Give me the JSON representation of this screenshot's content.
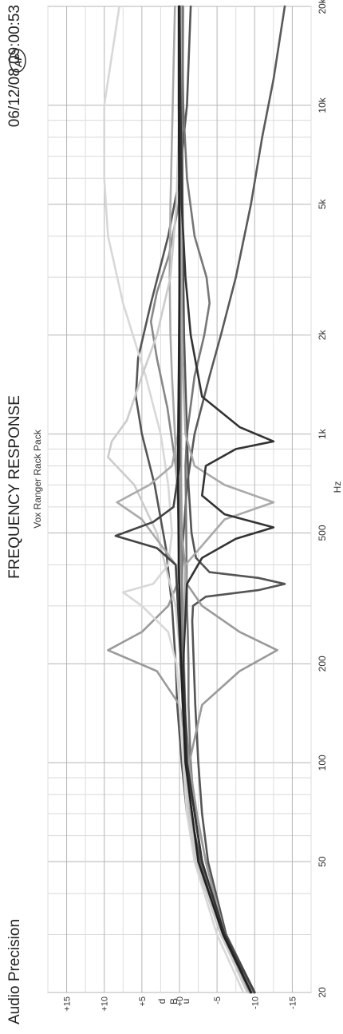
{
  "header": {
    "brand": "Audio Precision",
    "timestamp": "06/12/08 09:00:53",
    "logo_text": "AP"
  },
  "chart_data": {
    "type": "line",
    "orientation": "rotated-90",
    "title": "FREQUENCY RESPONSE",
    "subtitle": "Vox Ranger Rack Pack",
    "xlabel": "Hz",
    "ylabel": "dBu",
    "x_scale": "log",
    "xlim": [
      20,
      20000
    ],
    "ylim": [
      -17.5,
      17.5
    ],
    "x_ticks": [
      {
        "value": 20,
        "label": "20"
      },
      {
        "value": 50,
        "label": "50"
      },
      {
        "value": 100,
        "label": "100"
      },
      {
        "value": 200,
        "label": "200"
      },
      {
        "value": 500,
        "label": "500"
      },
      {
        "value": 1000,
        "label": "1k"
      },
      {
        "value": 2000,
        "label": "2k"
      },
      {
        "value": 5000,
        "label": "5k"
      },
      {
        "value": 10000,
        "label": "10k"
      },
      {
        "value": 20000,
        "label": "20k"
      }
    ],
    "y_ticks": [
      {
        "value": 15,
        "label": "+15"
      },
      {
        "value": 10,
        "label": "+10"
      },
      {
        "value": 5,
        "label": "+5"
      },
      {
        "value": 0,
        "label": "+0"
      },
      {
        "value": -5,
        "label": "-5"
      },
      {
        "value": -10,
        "label": "-10"
      },
      {
        "value": -15,
        "label": "-15"
      }
    ],
    "grid": true,
    "series": [
      {
        "color": "#5a5a5a",
        "points": [
          [
            20,
            -10
          ],
          [
            30,
            -6
          ],
          [
            50,
            -2.8
          ],
          [
            70,
            -1.5
          ],
          [
            100,
            -0.8
          ],
          [
            150,
            -0.4
          ],
          [
            200,
            -0.3
          ],
          [
            300,
            -0.3
          ],
          [
            450,
            -0.4
          ],
          [
            700,
            -1
          ],
          [
            1000,
            -2
          ],
          [
            1500,
            -4
          ],
          [
            2000,
            -5.5
          ],
          [
            3000,
            -7.5
          ],
          [
            5000,
            -9.5
          ],
          [
            8000,
            -11
          ],
          [
            12000,
            -12.5
          ],
          [
            20000,
            -14
          ]
        ]
      },
      {
        "color": "#555555",
        "points": [
          [
            20,
            -9.5
          ],
          [
            30,
            -5.5
          ],
          [
            50,
            -2.2
          ],
          [
            70,
            -1
          ],
          [
            100,
            -0.3
          ],
          [
            150,
            0.3
          ],
          [
            200,
            0.5
          ],
          [
            300,
            1
          ],
          [
            450,
            1.8
          ],
          [
            700,
            3.3
          ],
          [
            1000,
            5
          ],
          [
            1300,
            5.8
          ],
          [
            1700,
            5.5
          ],
          [
            2500,
            3.8
          ],
          [
            4000,
            1.5
          ],
          [
            6000,
            0
          ],
          [
            10000,
            -1
          ],
          [
            20000,
            -1.5
          ]
        ]
      },
      {
        "color": "#888888",
        "points": [
          [
            20,
            -9.5
          ],
          [
            30,
            -5.8
          ],
          [
            50,
            -3
          ],
          [
            70,
            -2
          ],
          [
            100,
            -1.3
          ],
          [
            140,
            -0.8
          ],
          [
            200,
            -0.6
          ],
          [
            300,
            -0.4
          ],
          [
            500,
            -0.2
          ],
          [
            800,
            0.5
          ],
          [
            1200,
            1.6
          ],
          [
            1700,
            3
          ],
          [
            2200,
            3.8
          ],
          [
            2700,
            3
          ],
          [
            3500,
            1.4
          ],
          [
            5000,
            0.1
          ],
          [
            10000,
            -0.4
          ],
          [
            20000,
            -0.5
          ]
        ]
      },
      {
        "color": "#777777",
        "points": [
          [
            20,
            -9.8
          ],
          [
            30,
            -6
          ],
          [
            50,
            -3
          ],
          [
            70,
            -2
          ],
          [
            100,
            -1.5
          ],
          [
            150,
            -1.2
          ],
          [
            200,
            -1.2
          ],
          [
            250,
            -1.1
          ],
          [
            300,
            -1
          ],
          [
            500,
            -0.9
          ],
          [
            800,
            -0.8
          ],
          [
            1000,
            -1
          ],
          [
            1500,
            -2
          ],
          [
            2000,
            -3.3
          ],
          [
            2500,
            -4
          ],
          [
            3000,
            -3.6
          ],
          [
            4000,
            -2
          ],
          [
            6000,
            -1
          ],
          [
            10000,
            -0.5
          ],
          [
            20000,
            -0.3
          ]
        ]
      },
      {
        "color": "#aaaaaa",
        "points": [
          [
            20,
            -9.3
          ],
          [
            30,
            -5.5
          ],
          [
            50,
            -2.5
          ],
          [
            70,
            -1.5
          ],
          [
            100,
            -0.8
          ],
          [
            150,
            -0.4
          ],
          [
            200,
            -0.2
          ],
          [
            300,
            -0.1
          ],
          [
            450,
            0
          ],
          [
            700,
            0.3
          ],
          [
            1000,
            0.6
          ],
          [
            1500,
            1
          ],
          [
            2000,
            1.2
          ],
          [
            3000,
            1.3
          ],
          [
            5000,
            1.2
          ],
          [
            10000,
            0.9
          ],
          [
            20000,
            0.6
          ]
        ]
      },
      {
        "color": "#555555",
        "points": [
          [
            20,
            -10
          ],
          [
            30,
            -6.2
          ],
          [
            50,
            -3.8
          ],
          [
            70,
            -3
          ],
          [
            100,
            -2.5
          ],
          [
            150,
            -2.1
          ],
          [
            200,
            -1.9
          ],
          [
            270,
            -1.7
          ],
          [
            300,
            -1.8
          ],
          [
            320,
            -3.5
          ],
          [
            335,
            -10.5
          ],
          [
            350,
            -14
          ],
          [
            365,
            -10.5
          ],
          [
            380,
            -4
          ],
          [
            420,
            -2.2
          ],
          [
            500,
            -1.6
          ],
          [
            700,
            -1.2
          ],
          [
            1000,
            -1
          ],
          [
            2000,
            -0.6
          ],
          [
            5000,
            -0.4
          ],
          [
            20000,
            -0.3
          ]
        ]
      },
      {
        "color": "#9a9a9a",
        "points": [
          [
            20,
            -9.5
          ],
          [
            30,
            -6
          ],
          [
            50,
            -3.5
          ],
          [
            70,
            -2.3
          ],
          [
            100,
            -1.3
          ],
          [
            150,
            0
          ],
          [
            190,
            3
          ],
          [
            220,
            9.5
          ],
          [
            250,
            5
          ],
          [
            300,
            1.5
          ],
          [
            350,
            0.3
          ],
          [
            500,
            -0.1
          ],
          [
            800,
            -0.2
          ],
          [
            1500,
            -0.2
          ],
          [
            20000,
            -0.2
          ]
        ]
      },
      {
        "color": "#9a9a9a",
        "points": [
          [
            20,
            -9.5
          ],
          [
            30,
            -6
          ],
          [
            50,
            -3.5
          ],
          [
            70,
            -2.3
          ],
          [
            100,
            -1.3
          ],
          [
            150,
            -3
          ],
          [
            190,
            -8
          ],
          [
            220,
            -13
          ],
          [
            250,
            -8
          ],
          [
            300,
            -3
          ],
          [
            350,
            -1
          ],
          [
            500,
            -0.3
          ],
          [
            800,
            -0.2
          ],
          [
            1500,
            -0.2
          ],
          [
            20000,
            -0.2
          ]
        ]
      },
      {
        "color": "#d8d8d8",
        "points": [
          [
            20,
            -8.5
          ],
          [
            30,
            -5
          ],
          [
            50,
            -2
          ],
          [
            70,
            -1
          ],
          [
            100,
            -0.5
          ],
          [
            150,
            0
          ],
          [
            200,
            0.4
          ],
          [
            250,
            1.5
          ],
          [
            300,
            5
          ],
          [
            330,
            7.5
          ],
          [
            350,
            3.5
          ],
          [
            400,
            1.5
          ],
          [
            500,
            1
          ],
          [
            700,
            1.5
          ],
          [
            1000,
            2.5
          ],
          [
            1500,
            4.5
          ],
          [
            2500,
            7.5
          ],
          [
            4000,
            9.5
          ],
          [
            6000,
            10
          ],
          [
            10000,
            10
          ],
          [
            20000,
            8
          ]
        ]
      },
      {
        "color": "#cccccc",
        "points": [
          [
            20,
            -9
          ],
          [
            30,
            -5.5
          ],
          [
            50,
            -2.2
          ],
          [
            70,
            -1.2
          ],
          [
            100,
            -0.7
          ],
          [
            150,
            -0.4
          ],
          [
            200,
            -0.2
          ],
          [
            300,
            0.5
          ],
          [
            500,
            3
          ],
          [
            700,
            6
          ],
          [
            850,
            9.5
          ],
          [
            950,
            9
          ],
          [
            1100,
            7
          ],
          [
            1500,
            5
          ],
          [
            2000,
            3
          ],
          [
            3000,
            1.2
          ],
          [
            5000,
            0.4
          ],
          [
            10000,
            0
          ],
          [
            20000,
            -0.2
          ]
        ]
      },
      {
        "color": "#aaaaaa",
        "points": [
          [
            20,
            -9.5
          ],
          [
            30,
            -6
          ],
          [
            50,
            -3
          ],
          [
            100,
            -1
          ],
          [
            200,
            -0.2
          ],
          [
            400,
            0.5
          ],
          [
            550,
            5
          ],
          [
            620,
            8.3
          ],
          [
            700,
            4
          ],
          [
            800,
            1
          ],
          [
            1000,
            0.2
          ],
          [
            2000,
            0
          ],
          [
            20000,
            0
          ]
        ]
      },
      {
        "color": "#aaaaaa",
        "points": [
          [
            20,
            -9.5
          ],
          [
            30,
            -6
          ],
          [
            50,
            -3
          ],
          [
            100,
            -1
          ],
          [
            200,
            -0.5
          ],
          [
            400,
            -0.8
          ],
          [
            550,
            -6
          ],
          [
            620,
            -12.5
          ],
          [
            700,
            -6
          ],
          [
            800,
            -2
          ],
          [
            1000,
            -0.8
          ],
          [
            2000,
            -0.3
          ],
          [
            20000,
            -0.2
          ]
        ]
      },
      {
        "color": "#444444",
        "points": [
          [
            20,
            -10
          ],
          [
            30,
            -6
          ],
          [
            50,
            -3
          ],
          [
            100,
            -1
          ],
          [
            200,
            -0.2
          ],
          [
            400,
            0.5
          ],
          [
            450,
            3
          ],
          [
            490,
            8.5
          ],
          [
            540,
            3.5
          ],
          [
            600,
            0.8
          ],
          [
            800,
            0
          ],
          [
            20000,
            0
          ]
        ]
      },
      {
        "color": "#333333",
        "points": [
          [
            20,
            -9.5
          ],
          [
            30,
            -6
          ],
          [
            50,
            -3
          ],
          [
            100,
            -1
          ],
          [
            200,
            -0.5
          ],
          [
            350,
            -1
          ],
          [
            420,
            -3
          ],
          [
            480,
            -7.5
          ],
          [
            520,
            -12.5
          ],
          [
            570,
            -6
          ],
          [
            650,
            -3
          ],
          [
            800,
            -3.5
          ],
          [
            900,
            -7.5
          ],
          [
            950,
            -12.5
          ],
          [
            1050,
            -8
          ],
          [
            1300,
            -3
          ],
          [
            2000,
            -1.5
          ],
          [
            3000,
            -0.8
          ],
          [
            5000,
            -0.3
          ],
          [
            20000,
            0
          ]
        ]
      },
      {
        "color": "#222222",
        "points": [
          [
            20,
            -9.5
          ],
          [
            30,
            -5.8
          ],
          [
            50,
            -2.5
          ],
          [
            100,
            -0.8
          ],
          [
            200,
            -0.2
          ],
          [
            400,
            0.1
          ],
          [
            800,
            0.2
          ],
          [
            1500,
            0.1
          ],
          [
            3000,
            0
          ],
          [
            10000,
            0.1
          ],
          [
            20000,
            0.1
          ]
        ]
      }
    ]
  }
}
